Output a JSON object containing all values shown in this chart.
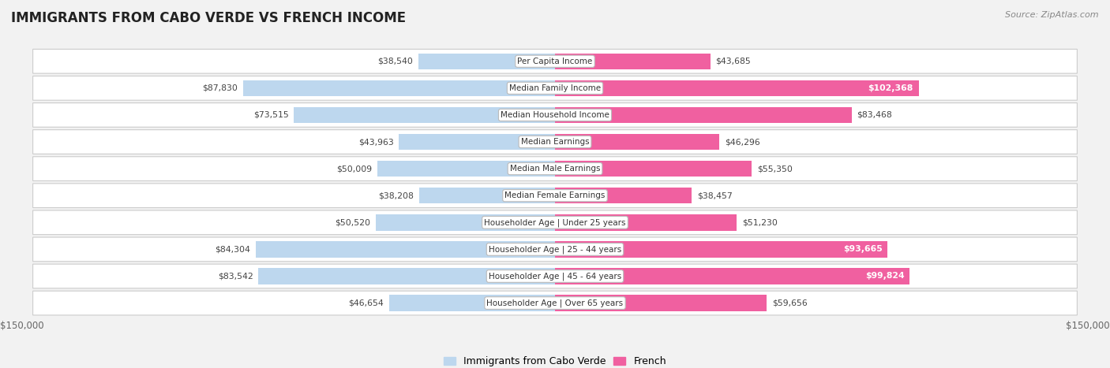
{
  "title": "IMMIGRANTS FROM CABO VERDE VS FRENCH INCOME",
  "source": "Source: ZipAtlas.com",
  "categories": [
    "Per Capita Income",
    "Median Family Income",
    "Median Household Income",
    "Median Earnings",
    "Median Male Earnings",
    "Median Female Earnings",
    "Householder Age | Under 25 years",
    "Householder Age | 25 - 44 years",
    "Householder Age | 45 - 64 years",
    "Householder Age | Over 65 years"
  ],
  "cabo_verde_values": [
    38540,
    87830,
    73515,
    43963,
    50009,
    38208,
    50520,
    84304,
    83542,
    46654
  ],
  "french_values": [
    43685,
    102368,
    83468,
    46296,
    55350,
    38457,
    51230,
    93665,
    99824,
    59656
  ],
  "cabo_verde_labels": [
    "$38,540",
    "$87,830",
    "$73,515",
    "$43,963",
    "$50,009",
    "$38,208",
    "$50,520",
    "$84,304",
    "$83,542",
    "$46,654"
  ],
  "french_labels": [
    "$43,685",
    "$102,368",
    "$83,468",
    "$46,296",
    "$55,350",
    "$38,457",
    "$51,230",
    "$93,665",
    "$99,824",
    "$59,656"
  ],
  "cabo_verde_color_strong": "#5b9bd5",
  "cabo_verde_color_light": "#bdd7ee",
  "french_color_strong": "#f060a0",
  "french_color_light": "#f4aacb",
  "max_value": 150000,
  "legend_cabo_verde": "Immigrants from Cabo Verde",
  "legend_french": "French",
  "bg_color": "#f2f2f2",
  "label_color_dark": "#444444",
  "label_color_white": "#ffffff",
  "title_fontsize": 12,
  "source_fontsize": 8,
  "label_fontsize": 7.8,
  "cat_fontsize": 7.5
}
